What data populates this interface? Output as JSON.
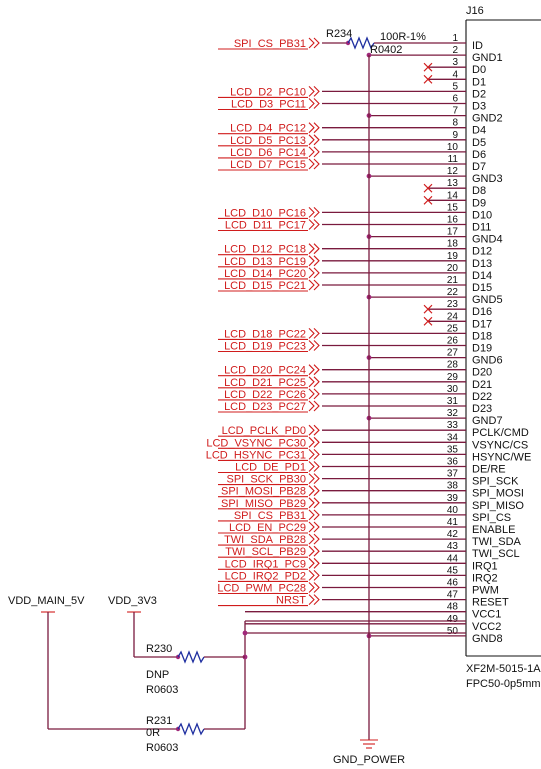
{
  "connector": {
    "ref": "J16",
    "part": "XF2M-5015-1A",
    "package": "FPC50-0p5mm",
    "pins": [
      {
        "num": "1",
        "name": "ID",
        "net": "SPI_CS_PB31",
        "via": "R234"
      },
      {
        "num": "2",
        "name": "GND1",
        "gnd": true
      },
      {
        "num": "3",
        "name": "D0",
        "nc": true
      },
      {
        "num": "4",
        "name": "D1",
        "nc": true
      },
      {
        "num": "5",
        "name": "D2",
        "net": "LCD_D2_PC10"
      },
      {
        "num": "6",
        "name": "D3",
        "net": "LCD_D3_PC11"
      },
      {
        "num": "7",
        "name": "GND2",
        "gnd": true
      },
      {
        "num": "8",
        "name": "D4",
        "net": "LCD_D4_PC12"
      },
      {
        "num": "9",
        "name": "D5",
        "net": "LCD_D5_PC13"
      },
      {
        "num": "10",
        "name": "D6",
        "net": "LCD_D6_PC14"
      },
      {
        "num": "11",
        "name": "D7",
        "net": "LCD_D7_PC15"
      },
      {
        "num": "12",
        "name": "GND3",
        "gnd": true
      },
      {
        "num": "13",
        "name": "D8",
        "nc": true
      },
      {
        "num": "14",
        "name": "D9",
        "nc": true
      },
      {
        "num": "15",
        "name": "D10",
        "net": "LCD_D10_PC16"
      },
      {
        "num": "16",
        "name": "D11",
        "net": "LCD_D11_PC17"
      },
      {
        "num": "17",
        "name": "GND4",
        "gnd": true
      },
      {
        "num": "18",
        "name": "D12",
        "net": "LCD_D12_PC18"
      },
      {
        "num": "19",
        "name": "D13",
        "net": "LCD_D13_PC19"
      },
      {
        "num": "20",
        "name": "D14",
        "net": "LCD_D14_PC20"
      },
      {
        "num": "21",
        "name": "D15",
        "net": "LCD_D15_PC21"
      },
      {
        "num": "22",
        "name": "GND5",
        "gnd": true
      },
      {
        "num": "23",
        "name": "D16",
        "nc": true
      },
      {
        "num": "24",
        "name": "D17",
        "nc": true
      },
      {
        "num": "25",
        "name": "D18",
        "net": "LCD_D18_PC22"
      },
      {
        "num": "26",
        "name": "D19",
        "net": "LCD_D19_PC23"
      },
      {
        "num": "27",
        "name": "GND6",
        "gnd": true
      },
      {
        "num": "28",
        "name": "D20",
        "net": "LCD_D20_PC24"
      },
      {
        "num": "29",
        "name": "D21",
        "net": "LCD_D21_PC25"
      },
      {
        "num": "30",
        "name": "D22",
        "net": "LCD_D22_PC26"
      },
      {
        "num": "31",
        "name": "D23",
        "net": "LCD_D23_PC27"
      },
      {
        "num": "32",
        "name": "GND7",
        "gnd": true
      },
      {
        "num": "33",
        "name": "PCLK/CMD",
        "net": "LCD_PCLK_PD0"
      },
      {
        "num": "34",
        "name": "VSYNC/CS",
        "net": "LCD_VSYNC_PC30"
      },
      {
        "num": "35",
        "name": "HSYNC/WE",
        "net": "LCD_HSYNC_PC31"
      },
      {
        "num": "36",
        "name": "DE/RE",
        "net": "LCD_DE_PD1"
      },
      {
        "num": "37",
        "name": "SPI_SCK",
        "net": "SPI_SCK_PB30"
      },
      {
        "num": "38",
        "name": "SPI_MOSI",
        "net": "SPI_MOSI_PB28"
      },
      {
        "num": "39",
        "name": "SPI_MISO",
        "net": "SPI_MISO_PB29"
      },
      {
        "num": "40",
        "name": "SPI_CS",
        "net": "SPI_CS_PB31"
      },
      {
        "num": "41",
        "name": "ENABLE",
        "net": "LCD_EN_PC29"
      },
      {
        "num": "42",
        "name": "TWI_SDA",
        "net": "TWI_SDA_PB28"
      },
      {
        "num": "43",
        "name": "TWI_SCL",
        "net": "TWI_SCL_PB29"
      },
      {
        "num": "44",
        "name": "IRQ1",
        "net": "LCD_IRQ1_PC9"
      },
      {
        "num": "45",
        "name": "IRQ2",
        "net": "LCD_IRQ2_PD2"
      },
      {
        "num": "46",
        "name": "PWM",
        "net": "LCD_PWM_PC28"
      },
      {
        "num": "47",
        "name": "RESET",
        "net": "NRST"
      },
      {
        "num": "48",
        "name": "VCC1",
        "supply": true
      },
      {
        "num": "49",
        "name": "VCC2",
        "supply": true
      },
      {
        "num": "50",
        "name": "GND8",
        "gnd": true
      }
    ]
  },
  "resistors": {
    "r234": {
      "ref": "R234",
      "value": "100R-1%",
      "package": "R0402"
    },
    "r230": {
      "ref": "R230",
      "value": "DNP",
      "package": "R0603"
    },
    "r231": {
      "ref": "R231",
      "value": "0R",
      "package": "R0603"
    }
  },
  "power": {
    "vdd_main": "VDD_MAIN_5V",
    "vdd_3v3": "VDD_3V3",
    "gnd": "GND_POWER"
  },
  "colors": {
    "net_label": "#d01c1c",
    "wire": "#7a1a3e",
    "resistor": "#1f2fa0",
    "junction": "#a0287a",
    "text": "#111111"
  }
}
